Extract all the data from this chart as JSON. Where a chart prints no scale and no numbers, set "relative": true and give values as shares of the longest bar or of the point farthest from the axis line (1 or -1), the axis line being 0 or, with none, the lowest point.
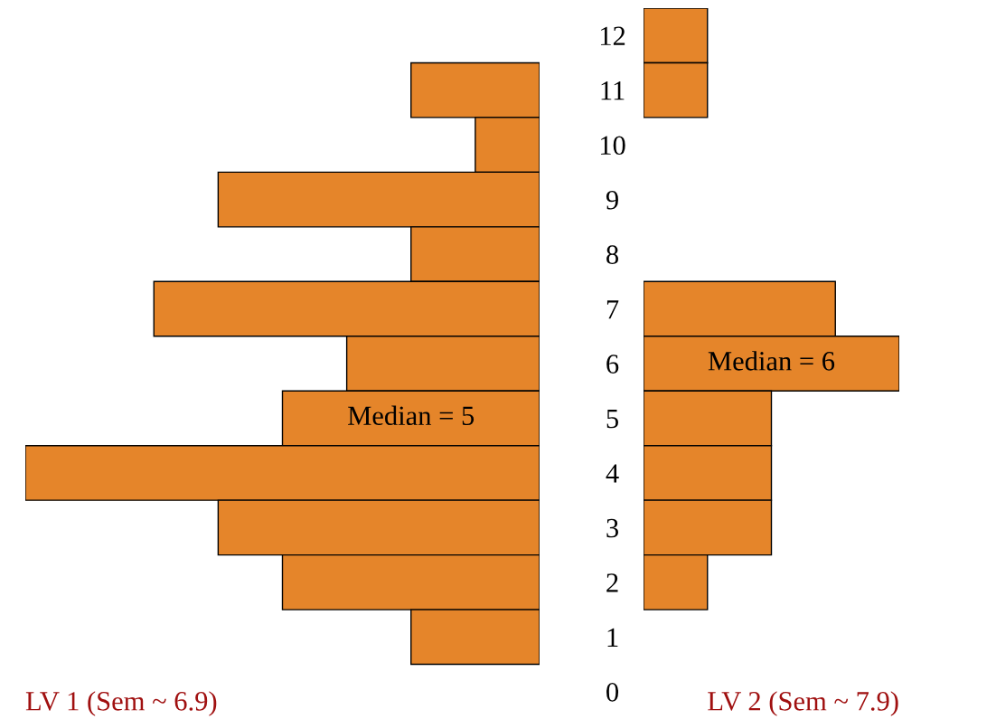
{
  "chart_data": [
    {
      "type": "bar",
      "orientation": "horizontal",
      "relative": true,
      "tick_labels": "y",
      "xlabel": "LV 1 (Sem ~ 6.9)",
      "categories": [
        "12",
        "11",
        "10",
        "9",
        "8",
        "7",
        "6",
        "5",
        "4",
        "3",
        "2",
        "1",
        "0"
      ],
      "values": [
        null,
        0.25,
        0.125,
        0.625,
        0.25,
        0.75,
        0.375,
        0.5,
        1,
        0.625,
        0.5,
        0.25,
        null
      ],
      "color": "#e5852a",
      "annotations": [
        "Median = 5"
      ]
    },
    {
      "type": "bar",
      "orientation": "horizontal",
      "relative": true,
      "tick_labels": false,
      "xlabel": "LV 2 (Sem ~ 7.9)",
      "categories": [
        "12",
        "11",
        "10",
        "9",
        "8",
        "7",
        "6",
        "5",
        "4",
        "3",
        "2",
        "1",
        "0"
      ],
      "values": [
        0.25,
        0.25,
        null,
        null,
        null,
        0.75,
        1,
        0.5,
        0.5,
        0.5,
        0.25,
        null,
        null
      ],
      "color": "#e5852a",
      "annotations": [
        "Median = 6"
      ]
    }
  ]
}
